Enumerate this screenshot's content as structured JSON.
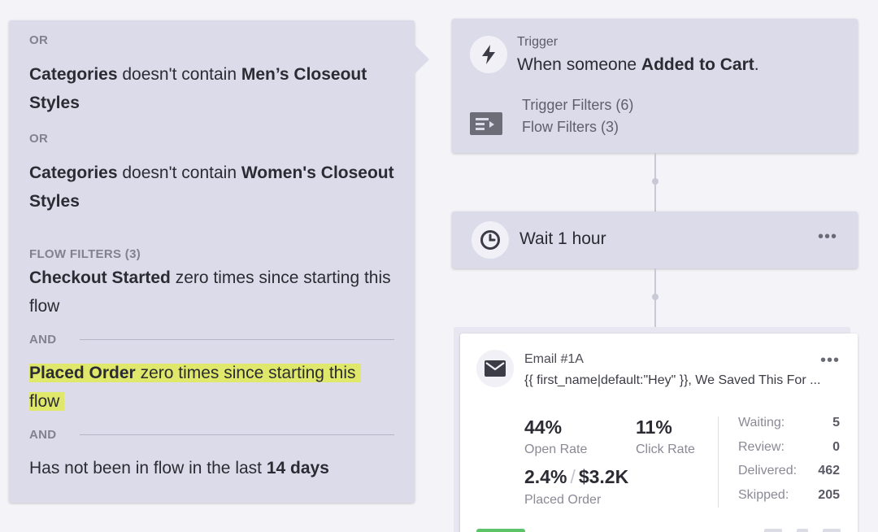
{
  "filters_panel": {
    "op1": "OR",
    "cond1": {
      "field": "Categories",
      "verb": " doesn't contain ",
      "value": "Men’s Closeout Styles"
    },
    "op2": "OR",
    "cond2": {
      "field": "Categories",
      "verb": " doesn't contain ",
      "value": "Women's Closeout Styles"
    },
    "section_title": "FLOW FILTERS (3)",
    "cond3": {
      "event": "Checkout Started",
      "rest": " zero times since starting this flow"
    },
    "op3": "AND",
    "cond4": {
      "event": "Placed Order",
      "rest": " zero times since starting this flow"
    },
    "op4": "AND",
    "cond5": {
      "text": "Has not been in flow in the last ",
      "value": "14 days"
    }
  },
  "trigger": {
    "label": "Trigger",
    "text_prefix": "When someone ",
    "event": "Added to Cart",
    "text_suffix": ".",
    "trigger_filters": "Trigger Filters (6)",
    "flow_filters": "Flow Filters (3)",
    "icon": "lightning-icon"
  },
  "wait": {
    "text": "Wait 1 hour",
    "menu": "•••",
    "icon": "clock-icon"
  },
  "email": {
    "name": "Email #1A",
    "subject": "{{ first_name|default:\"Hey\" }}, We Saved This For ...",
    "menu": "•••",
    "icon": "envelope-icon",
    "open_rate": {
      "value": "44%",
      "label": "Open Rate"
    },
    "click_rate": {
      "value": "11%",
      "label": "Click Rate"
    },
    "placed_order": {
      "pct": "2.4%",
      "sep": "/",
      "revenue": "$3.2K",
      "label": "Placed Order"
    },
    "side_stats": [
      {
        "label": "Waiting:",
        "value": "5"
      },
      {
        "label": "Review:",
        "value": "0"
      },
      {
        "label": "Delivered:",
        "value": "462"
      },
      {
        "label": "Skipped:",
        "value": "205"
      }
    ]
  },
  "colors": {
    "panel_bg": "#dcdbe9",
    "highlight": "#dfe86a",
    "live_green": "#5cc36b"
  }
}
